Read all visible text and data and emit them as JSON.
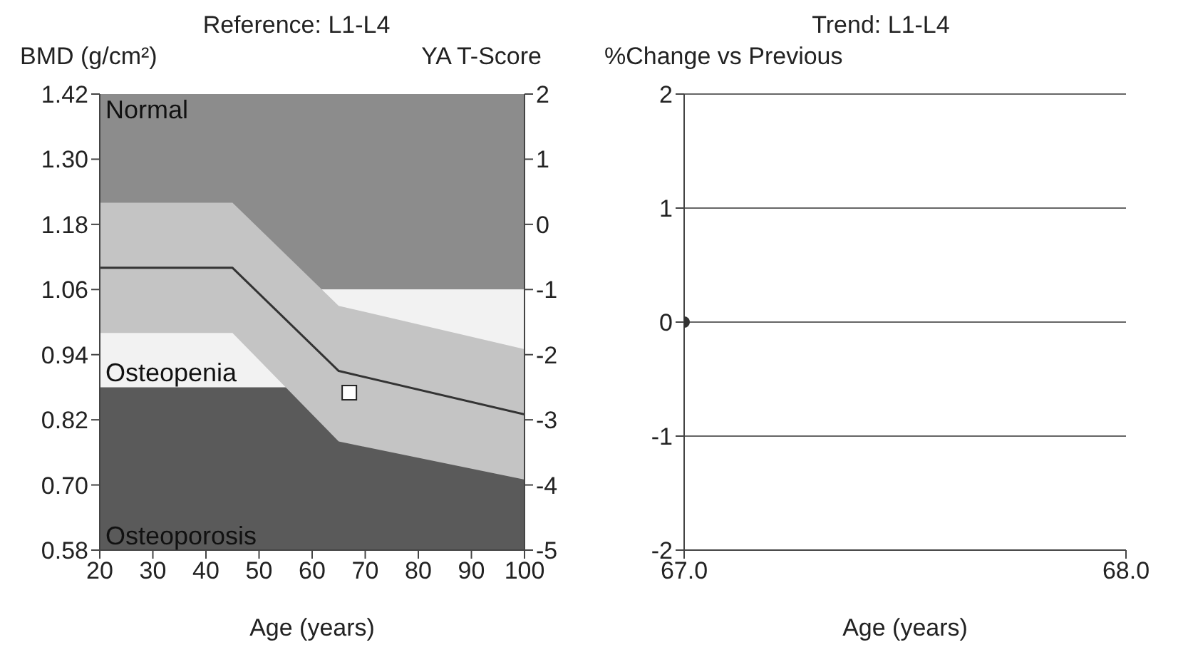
{
  "chart_data": [
    {
      "type": "line",
      "title": "Reference: L1-L4",
      "ylabel": "BMD (g/cm²)",
      "y2label": "YA T-Score",
      "xlabel": "Age (years)",
      "xlim": [
        20,
        100
      ],
      "xticks": [
        20,
        30,
        40,
        50,
        60,
        70,
        80,
        90,
        100
      ],
      "ylim": [
        0.58,
        1.42
      ],
      "yticks": [
        0.58,
        {
          "value": 0.7,
          "label": "0.70"
        },
        0.82,
        0.94,
        1.06,
        1.18,
        {
          "value": 1.3,
          "label": "1.30"
        },
        1.42
      ],
      "y2lim": [
        -5,
        2
      ],
      "y2ticks": [
        -5,
        -4,
        -3,
        -2,
        -1,
        0,
        1,
        2
      ],
      "grid": false,
      "bands": [
        {
          "axis": "y",
          "from": 1.06,
          "to": 1.42,
          "label": "Normal",
          "color": "#8c8c8c"
        },
        {
          "axis": "y",
          "from": 0.88,
          "to": 1.06,
          "label": "Osteopenia",
          "color": "#f2f2f2"
        },
        {
          "axis": "y",
          "from": 0.58,
          "to": 0.88,
          "label": "Osteoporosis",
          "color": "#5a5a5a"
        }
      ],
      "series": [
        {
          "color": "#333333",
          "x": [
            20,
            45,
            65,
            100
          ],
          "values": [
            1.1,
            1.1,
            0.91,
            0.83
          ],
          "lower": [
            0.98,
            0.98,
            0.78,
            0.71
          ],
          "upper": [
            1.22,
            1.22,
            1.03,
            0.95
          ]
        },
        {
          "type": "scatter",
          "marker": "square",
          "color": "#ffffff",
          "x": [
            67
          ],
          "values": [
            0.87
          ]
        }
      ]
    },
    {
      "type": "scatter",
      "title": "Trend: L1-L4",
      "ylabel": "%Change vs Previous",
      "xlabel": "Age (years)",
      "xlim": [
        67,
        68
      ],
      "xticks": [
        {
          "value": 67,
          "label": "67.0"
        },
        {
          "value": 68,
          "label": "68.0"
        }
      ],
      "ylim": [
        -2,
        2
      ],
      "yticks": [
        -2,
        -1,
        0,
        1,
        2
      ],
      "grid": "y",
      "marker": "circle",
      "series": [
        {
          "color": "#333333",
          "x": [
            67
          ],
          "values": [
            0
          ]
        }
      ]
    }
  ]
}
